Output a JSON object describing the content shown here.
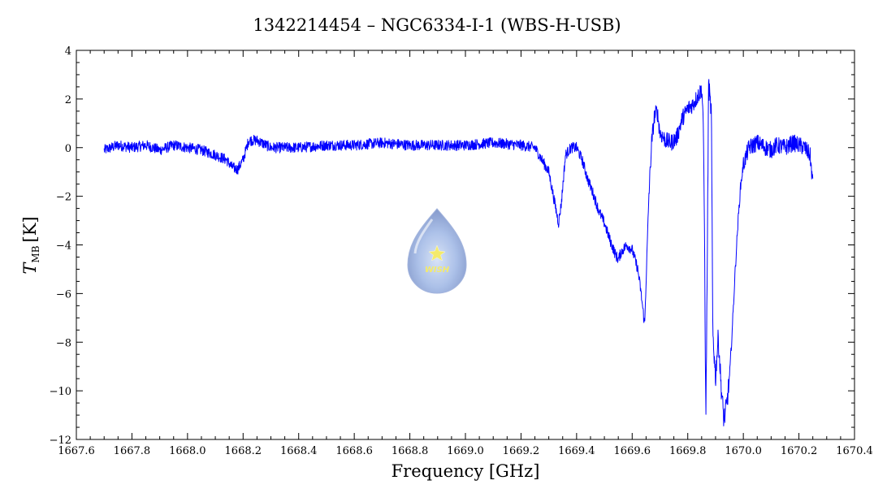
{
  "chart_data": {
    "type": "line",
    "title": "1342214454 – NGC6334-I-1 (WBS-H-USB)",
    "xlabel": "Frequency [GHz]",
    "ylabel_main": "T",
    "ylabel_sub": "MB",
    "ylabel_unit": "[K]",
    "xlim": [
      1667.6,
      1670.4
    ],
    "ylim": [
      -12,
      4
    ],
    "x_ticks": [
      1667.6,
      1667.8,
      1668.0,
      1668.2,
      1668.4,
      1668.6,
      1668.8,
      1669.0,
      1669.2,
      1669.4,
      1669.6,
      1669.8,
      1670.0,
      1670.2,
      1670.4
    ],
    "x_tick_labels": [
      "1667.6",
      "1667.8",
      "1668.0",
      "1668.2",
      "1668.4",
      "1668.6",
      "1668.8",
      "1669.0",
      "1669.2",
      "1669.4",
      "1669.6",
      "1669.8",
      "1670.0",
      "1670.2",
      "1670.4"
    ],
    "y_ticks": [
      -12,
      -10,
      -8,
      -6,
      -4,
      -2,
      0,
      2,
      4
    ],
    "y_tick_labels": [
      "−12",
      "−10",
      "−8",
      "−6",
      "−4",
      "−2",
      "0",
      "2",
      "4"
    ],
    "grid": false,
    "series": [
      {
        "color": "#0000ff",
        "x": [
          1667.7,
          1667.75,
          1667.8,
          1667.85,
          1667.9,
          1667.95,
          1668.0,
          1668.05,
          1668.1,
          1668.14,
          1668.16,
          1668.18,
          1668.2,
          1668.22,
          1668.25,
          1668.3,
          1668.4,
          1668.5,
          1668.6,
          1668.7,
          1668.8,
          1668.9,
          1669.0,
          1669.1,
          1669.2,
          1669.25,
          1669.28,
          1669.3,
          1669.32,
          1669.335,
          1669.345,
          1669.36,
          1669.38,
          1669.4,
          1669.42,
          1669.44,
          1669.46,
          1669.48,
          1669.5,
          1669.52,
          1669.54,
          1669.55,
          1669.56,
          1669.58,
          1669.6,
          1669.62,
          1669.63,
          1669.64,
          1669.645,
          1669.65,
          1669.66,
          1669.67,
          1669.68,
          1669.69,
          1669.7,
          1669.72,
          1669.74,
          1669.76,
          1669.78,
          1669.8,
          1669.82,
          1669.84,
          1669.85,
          1669.855,
          1669.86,
          1669.865,
          1669.87,
          1669.875,
          1669.88,
          1669.885,
          1669.89,
          1669.9,
          1669.905,
          1669.91,
          1669.92,
          1669.925,
          1669.93,
          1669.94,
          1669.95,
          1669.96,
          1669.97,
          1669.98,
          1669.99,
          1670.0,
          1670.02,
          1670.05,
          1670.08,
          1670.1,
          1670.12,
          1670.15,
          1670.18,
          1670.2,
          1670.22,
          1670.24,
          1670.25
        ],
        "y": [
          -0.1,
          0.1,
          0.0,
          0.1,
          -0.1,
          0.1,
          0.0,
          -0.1,
          -0.3,
          -0.5,
          -0.8,
          -0.9,
          -0.5,
          0.3,
          0.3,
          0.0,
          0.0,
          0.1,
          0.1,
          0.2,
          0.1,
          0.1,
          0.1,
          0.2,
          0.1,
          0.0,
          -0.6,
          -1.0,
          -2.2,
          -3.1,
          -2.3,
          -0.3,
          0.0,
          0.0,
          -0.5,
          -1.3,
          -1.9,
          -2.6,
          -3.1,
          -3.8,
          -4.4,
          -4.6,
          -4.3,
          -4.0,
          -4.2,
          -5.0,
          -5.8,
          -6.8,
          -7.3,
          -5.5,
          -2.0,
          0.2,
          1.3,
          1.5,
          0.6,
          0.3,
          0.2,
          0.4,
          1.2,
          1.6,
          1.8,
          2.2,
          2.4,
          1.5,
          -3.0,
          -11.4,
          -5.0,
          2.7,
          1.9,
          1.5,
          -7.5,
          -9.5,
          -8.5,
          -7.8,
          -9.8,
          -10.5,
          -11.2,
          -10.6,
          -9.5,
          -7.5,
          -5.2,
          -3.2,
          -1.6,
          -0.7,
          0.0,
          0.2,
          0.0,
          -0.1,
          0.1,
          0.0,
          0.2,
          0.1,
          0.0,
          -0.3,
          -1.5
        ]
      }
    ]
  },
  "logo": {
    "text": "WISH"
  }
}
